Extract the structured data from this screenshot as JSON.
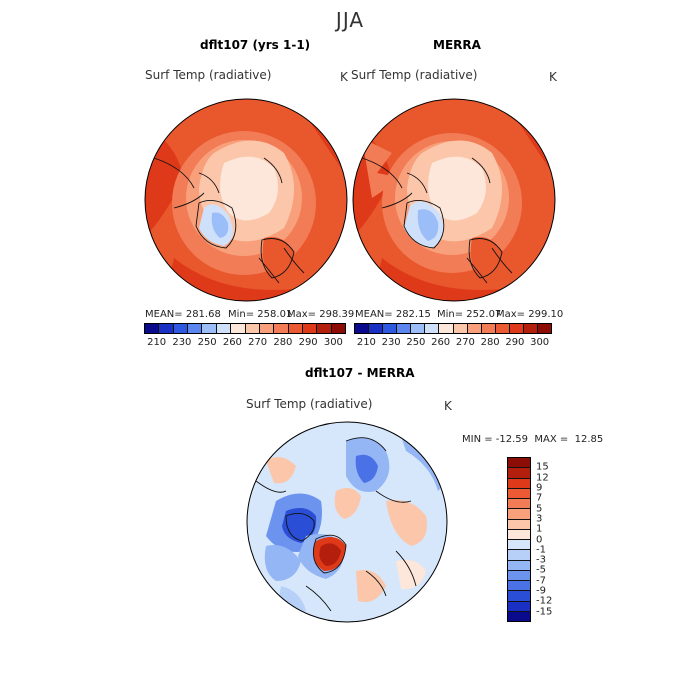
{
  "season": "JJA",
  "panels": {
    "model": {
      "title": "dflt107 (yrs 1-1)",
      "field": "Surf Temp (radiative)",
      "units": "K",
      "mean": "MEAN= 281.68",
      "min": "Min= 258.01",
      "max": "Max= 298.39"
    },
    "obs": {
      "title": "MERRA",
      "field": "Surf Temp (radiative)",
      "units": "K",
      "mean": "MEAN= 282.15",
      "min": "Min= 252.07",
      "max": "Max= 299.10"
    },
    "diff": {
      "title": "dflt107 - MERRA",
      "field": "Surf Temp (radiative)",
      "units": "K",
      "minmax": "MIN = -12.59  MAX =  12.85"
    }
  },
  "abs_colorbar": {
    "colors": [
      "#0a0a8c",
      "#1a30c4",
      "#2f58e0",
      "#5b86f0",
      "#9cbef8",
      "#cfe0fb",
      "#fde6da",
      "#fbc6aa",
      "#f8a07c",
      "#f27c55",
      "#eb5a33",
      "#de3a1a",
      "#b41e0c",
      "#8c0c06"
    ],
    "ticks": [
      "210",
      "230",
      "250",
      "260",
      "270",
      "280",
      "290",
      "300"
    ]
  },
  "diff_colorbar": {
    "colors": [
      "#8c0c06",
      "#b41e0c",
      "#de3a1a",
      "#eb5a33",
      "#f27c55",
      "#f8a07c",
      "#fbc6aa",
      "#fde6da",
      "#d7e7fb",
      "#b6d0f8",
      "#94b6f4",
      "#6c94ee",
      "#4a72e6",
      "#2a4ed6",
      "#1a30c4",
      "#0a0a8c"
    ],
    "ticks": [
      "15",
      "12",
      "9",
      "7",
      "5",
      "3",
      "1",
      "0",
      "-1",
      "-3",
      "-5",
      "-7",
      "-9",
      "-12",
      "-15"
    ]
  },
  "map_colors": {
    "warm_ocean": "#e9572d",
    "mid_warm": "#f27c55",
    "light_warm": "#f8a07c",
    "pale": "#fbc6aa",
    "arctic": "#fde6da",
    "ice_blue": "#9cbef8",
    "ice_light": "#cfe0fb",
    "diff_bg": "#d7e7fb",
    "diff_blue": "#6c94ee",
    "diff_deep": "#2a4ed6",
    "diff_red": "#de3a1a",
    "diff_pink": "#fbc6aa"
  }
}
